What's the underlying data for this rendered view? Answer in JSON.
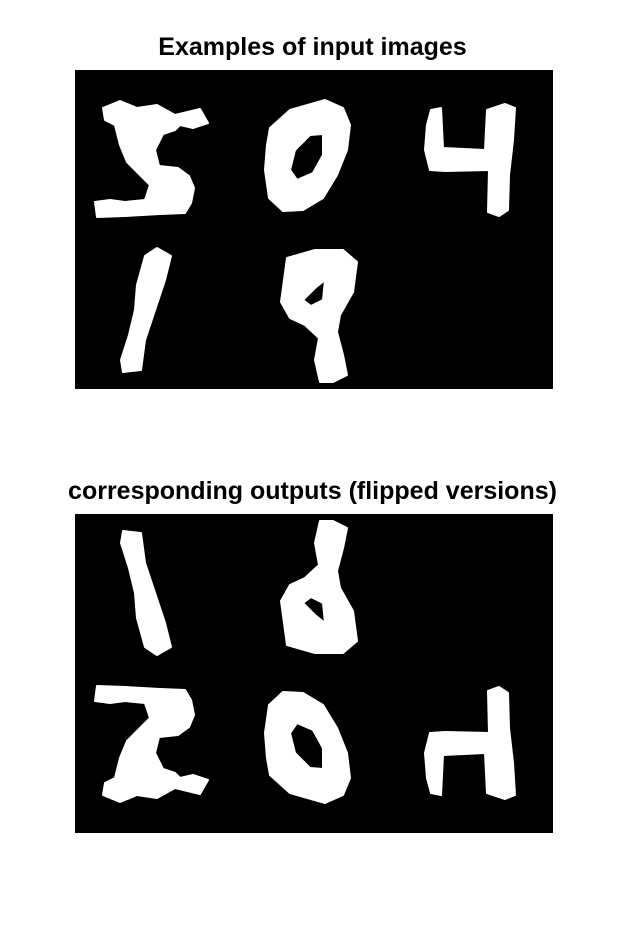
{
  "figure": {
    "title_top": "Examples of input images",
    "title_bottom": "corresponding outputs (flipped versions)",
    "background_color": "#000000",
    "stroke_color": "#ffffff",
    "top_panel_digits": [
      "5",
      "0",
      "4",
      "1",
      "9"
    ],
    "bottom_panel_digits": [
      "5",
      "0",
      "4",
      "1",
      "9"
    ],
    "bottom_panel_transform": "vertical-flip"
  }
}
